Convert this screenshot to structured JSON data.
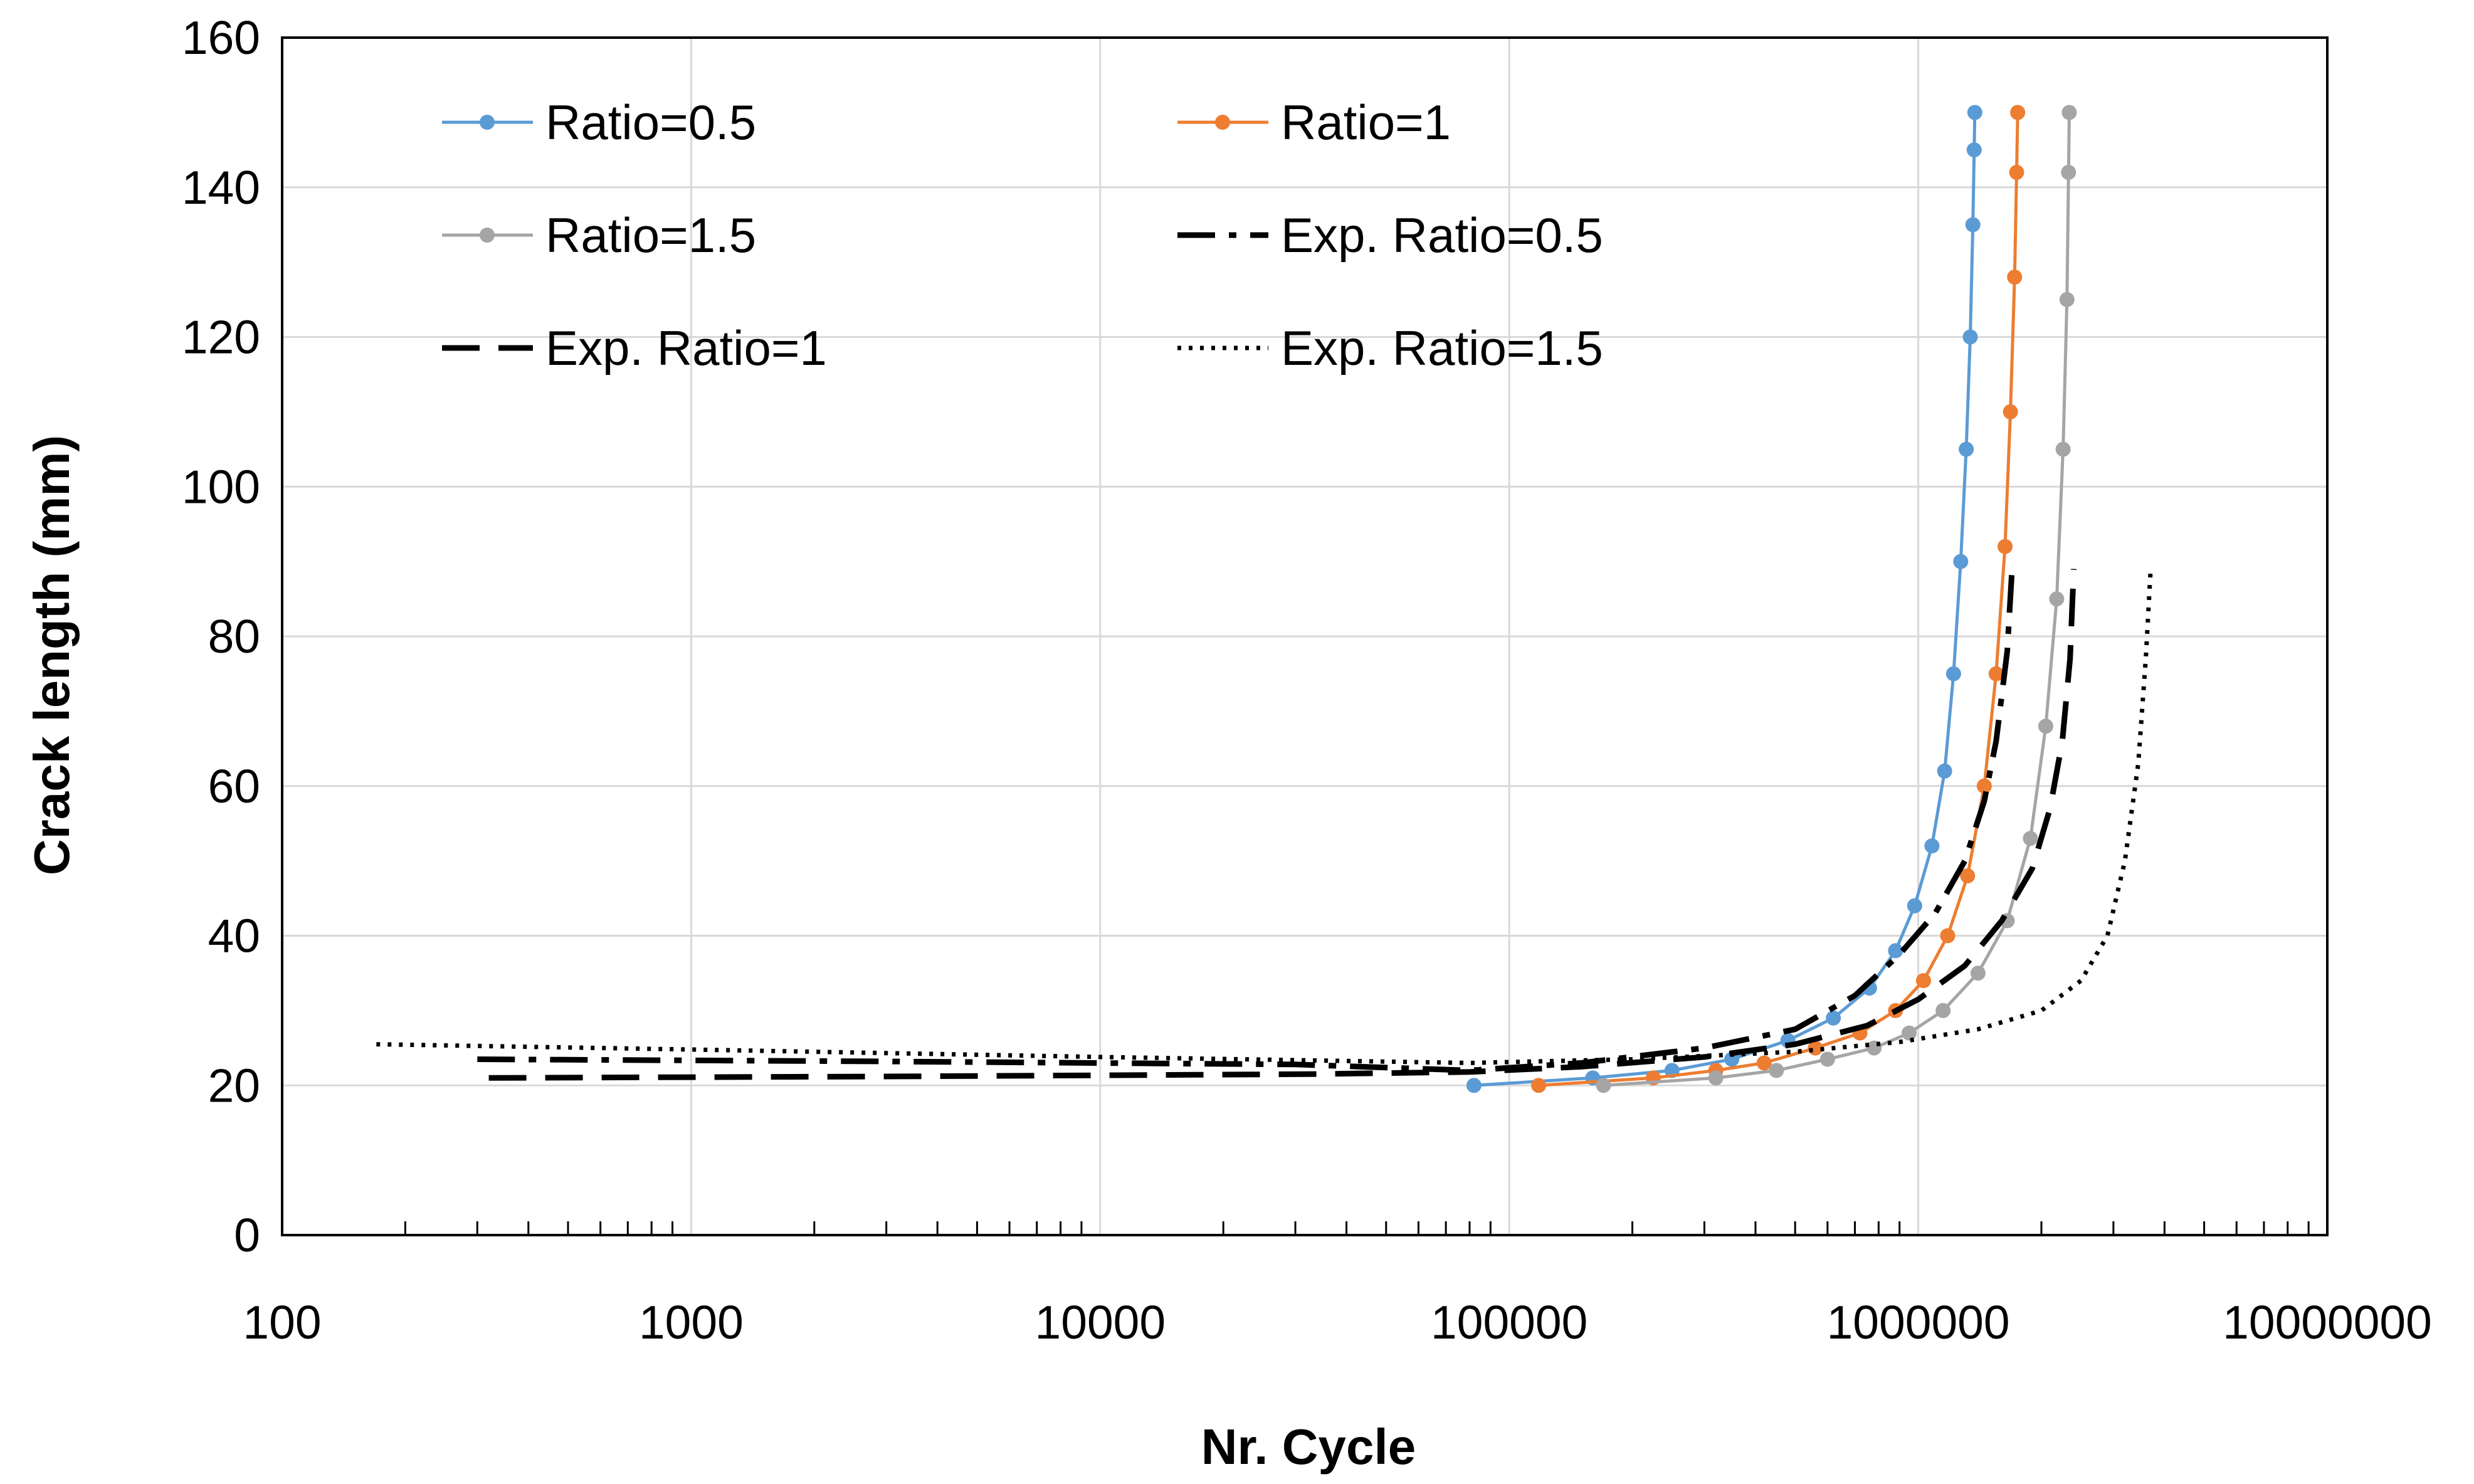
{
  "chart_data": {
    "type": "line",
    "title": "",
    "xlabel": "Nr. Cycle",
    "ylabel": "Crack length (mm)",
    "xscale": "log",
    "xlim": [
      100,
      10000000
    ],
    "ylim": [
      0,
      160
    ],
    "grid": true,
    "x_tick_labels": [
      "100",
      "1000",
      "10000",
      "100000",
      "1000000",
      "10000000"
    ],
    "y_tick_labels": [
      "0",
      "20",
      "40",
      "60",
      "80",
      "100",
      "120",
      "140",
      "160"
    ],
    "legend": {
      "position": "top-left",
      "columns": 2
    },
    "series": [
      {
        "name": "Ratio=0.5",
        "color": "#5B9BD5",
        "style": "solid-markers",
        "x": [
          82000,
          160000,
          250000,
          350000,
          480000,
          620000,
          760000,
          880000,
          980000,
          1080000,
          1160000,
          1220000,
          1270000,
          1310000,
          1340000,
          1360000,
          1370000,
          1375000
        ],
        "y": [
          20,
          21,
          22,
          23.5,
          26,
          29,
          33,
          38,
          44,
          52,
          62,
          75,
          90,
          105,
          120,
          135,
          145,
          150
        ]
      },
      {
        "name": "Ratio=1",
        "color": "#ED7D31",
        "style": "solid-markers",
        "x": [
          118000,
          225000,
          320000,
          420000,
          560000,
          720000,
          880000,
          1030000,
          1180000,
          1320000,
          1450000,
          1550000,
          1630000,
          1680000,
          1720000,
          1740000,
          1750000
        ],
        "y": [
          20,
          21,
          22,
          23,
          25,
          27,
          30,
          34,
          40,
          48,
          60,
          75,
          92,
          110,
          128,
          142,
          150
        ]
      },
      {
        "name": "Ratio=1.5",
        "color": "#A5A5A5",
        "style": "solid-markers",
        "x": [
          170000,
          320000,
          450000,
          600000,
          780000,
          950000,
          1150000,
          1400000,
          1650000,
          1880000,
          2050000,
          2180000,
          2260000,
          2310000,
          2330000,
          2340000
        ],
        "y": [
          20,
          21,
          22,
          23.5,
          25,
          27,
          30,
          35,
          42,
          53,
          68,
          85,
          105,
          125,
          142,
          150
        ]
      },
      {
        "name": "Exp. Ratio=0.5",
        "color": "#000000",
        "style": "dash-dot",
        "x": [
          300,
          3000,
          30000,
          80000,
          150000,
          300000,
          500000,
          700000,
          900000,
          1100000,
          1300000,
          1450000,
          1550000,
          1650000,
          1700000
        ],
        "y": [
          23.5,
          23.2,
          22.8,
          22,
          23,
          25,
          27.5,
          32,
          37.5,
          43,
          50,
          58,
          66,
          78,
          90
        ]
      },
      {
        "name": "Exp. Ratio=1",
        "color": "#000000",
        "style": "long-dash",
        "x": [
          320,
          3200,
          32000,
          80000,
          150000,
          300000,
          500000,
          750000,
          1000000,
          1300000,
          1600000,
          1900000,
          2100000,
          2250000,
          2350000,
          2400000
        ],
        "y": [
          21,
          21.2,
          21.5,
          21.8,
          22.5,
          23.8,
          25.5,
          28,
          31.5,
          36,
          42,
          49,
          57,
          66,
          77,
          89
        ]
      },
      {
        "name": "Exp. Ratio=1.5",
        "color": "#000000",
        "style": "dotted",
        "x": [
          170,
          1000,
          10000,
          80000,
          200000,
          500000,
          900000,
          1400000,
          2000000,
          2500000,
          2900000,
          3200000,
          3450000,
          3600000,
          3700000
        ],
        "y": [
          25.5,
          24.8,
          23.8,
          23,
          23.5,
          24.5,
          25.8,
          27.5,
          30,
          34,
          40,
          50,
          63,
          77,
          89
        ]
      }
    ]
  }
}
